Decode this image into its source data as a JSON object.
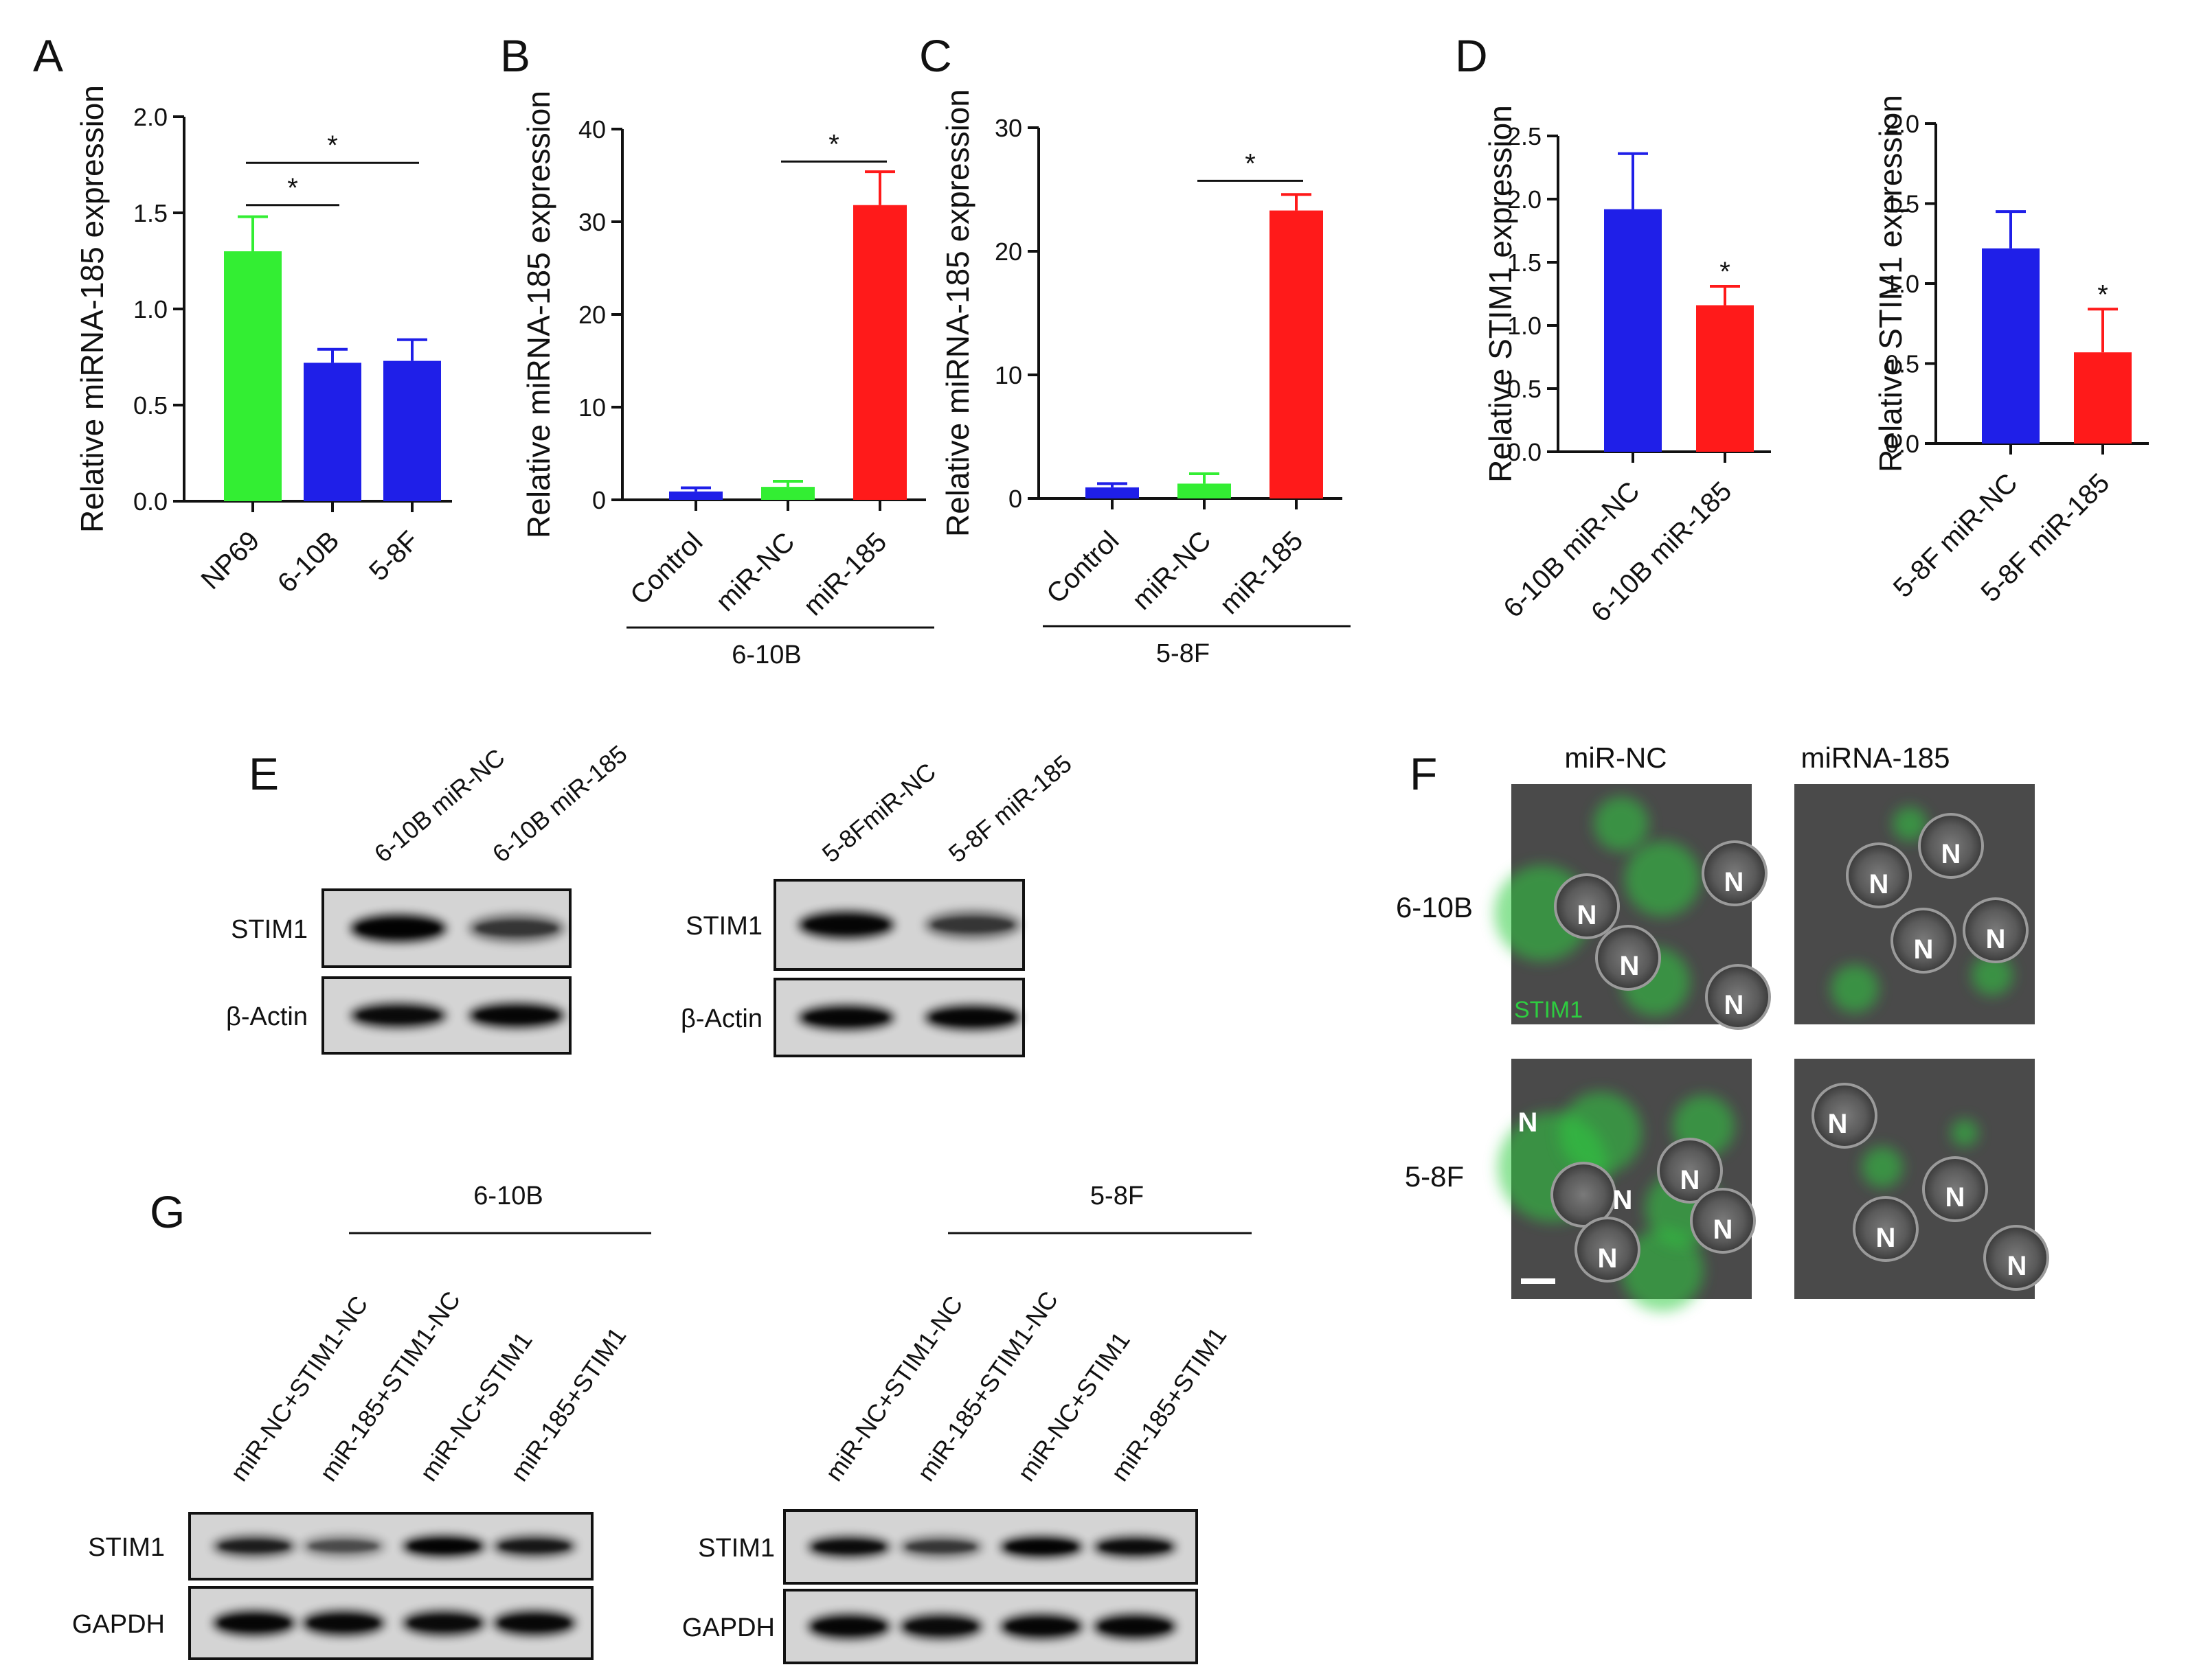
{
  "panels": {
    "A": {
      "letter": "A"
    },
    "B": {
      "letter": "B"
    },
    "C": {
      "letter": "C"
    },
    "D": {
      "letter": "D"
    },
    "E": {
      "letter": "E"
    },
    "F": {
      "letter": "F"
    },
    "G": {
      "letter": "G"
    }
  },
  "colors": {
    "green": "#33ee33",
    "blue": "#1f1fe8",
    "red": "#ff1a1a",
    "stim1_stain": "#2ecc40"
  },
  "chart_data": [
    {
      "id": "A",
      "type": "bar",
      "ylabel": "Relative miRNA-185 expression",
      "ylim": [
        0,
        2.0
      ],
      "yticks": [
        0.0,
        0.5,
        1.0,
        1.5,
        2.0
      ],
      "ytick_labels": [
        "0.0",
        "0.5",
        "1.0",
        "1.5",
        "2.0"
      ],
      "categories": [
        "NP69",
        "6-10B",
        "5-8F"
      ],
      "values": [
        1.3,
        0.72,
        0.73
      ],
      "errors": [
        0.18,
        0.07,
        0.11
      ],
      "colors": [
        "#33ee33",
        "#1f1fe8",
        "#1f1fe8"
      ],
      "significance": [
        {
          "from": 0,
          "to": 1,
          "y": 1.54,
          "label": "*"
        },
        {
          "from": 0,
          "to": 2,
          "y": 1.76,
          "label": "*"
        }
      ],
      "group_label": ""
    },
    {
      "id": "B",
      "type": "bar",
      "ylabel": "Relative miRNA-185 expression",
      "ylim": [
        0,
        40
      ],
      "yticks": [
        0,
        10,
        20,
        30,
        40
      ],
      "ytick_labels": [
        "0",
        "10",
        "20",
        "30",
        "40"
      ],
      "categories": [
        "Control",
        "miR-NC",
        "miR-185"
      ],
      "values": [
        0.9,
        1.4,
        31.8
      ],
      "errors": [
        0.4,
        0.6,
        3.6
      ],
      "colors": [
        "#1f1fe8",
        "#33ee33",
        "#ff1a1a"
      ],
      "significance": [
        {
          "from": 1,
          "to": 2,
          "y": 36.5,
          "label": "*"
        }
      ],
      "group_label": "6-10B"
    },
    {
      "id": "C",
      "type": "bar",
      "ylabel": "Relative miRNA-185 expression",
      "ylim": [
        0,
        30
      ],
      "yticks": [
        0,
        10,
        20,
        30
      ],
      "ytick_labels": [
        "0",
        "10",
        "20",
        "30"
      ],
      "categories": [
        "Control",
        "miR-NC",
        "miR-185"
      ],
      "values": [
        0.9,
        1.2,
        23.3
      ],
      "errors": [
        0.3,
        0.8,
        1.3
      ],
      "colors": [
        "#1f1fe8",
        "#33ee33",
        "#ff1a1a"
      ],
      "significance": [
        {
          "from": 1,
          "to": 2,
          "y": 25.7,
          "label": "*"
        }
      ],
      "group_label": "5-8F"
    },
    {
      "id": "D1",
      "type": "bar",
      "ylabel": "Relative STIM1 expression",
      "ylim": [
        0,
        2.5
      ],
      "yticks": [
        0.0,
        0.5,
        1.0,
        1.5,
        2.0,
        2.5
      ],
      "ytick_labels": [
        "0.0",
        "0.5",
        "1.0",
        "1.5",
        "2.0",
        "2.5"
      ],
      "categories": [
        "6-10B miR-NC",
        "6-10B miR-185"
      ],
      "values": [
        1.92,
        1.16
      ],
      "errors": [
        0.44,
        0.15
      ],
      "colors": [
        "#1f1fe8",
        "#ff1a1a"
      ],
      "marks": [
        {
          "index": 1,
          "label": "*"
        }
      ],
      "group_label": ""
    },
    {
      "id": "D2",
      "type": "bar",
      "ylabel": "Relative STIM1 expression",
      "ylim": [
        0,
        2.0
      ],
      "yticks": [
        0.0,
        0.5,
        1.0,
        1.5,
        2.0
      ],
      "ytick_labels": [
        "0.0",
        "0.5",
        "1.0",
        "1.5",
        "2.0"
      ],
      "categories": [
        "5-8F miR-NC",
        "5-8F miR-185"
      ],
      "values": [
        1.22,
        0.57
      ],
      "errors": [
        0.23,
        0.27
      ],
      "colors": [
        "#1f1fe8",
        "#ff1a1a"
      ],
      "marks": [
        {
          "index": 1,
          "label": "*"
        }
      ],
      "group_label": ""
    }
  ],
  "blots_E": [
    {
      "lanes": [
        "6-10B miR-NC",
        "6-10B miR-185"
      ],
      "rows": [
        "STIM1",
        "β-Actin"
      ]
    },
    {
      "lanes": [
        "5-8FmiR-NC",
        "5-8F miR-185"
      ],
      "rows": [
        "STIM1",
        "β-Actin"
      ]
    }
  ],
  "microscopy_F": {
    "columns": [
      "miR-NC",
      "miRNA-185"
    ],
    "rows": [
      "6-10B",
      "5-8F"
    ],
    "nucleus_label": "N",
    "stain_label": "STIM1"
  },
  "blots_G": [
    {
      "group": "6-10B",
      "lanes": [
        "miR-NC+STIM1-NC",
        "miR-185+STIM1-NC",
        "miR-NC+STIM1",
        "miR-185+STIM1"
      ],
      "rows": [
        "STIM1",
        "GAPDH"
      ]
    },
    {
      "group": "5-8F",
      "lanes": [
        "miR-NC+STIM1-NC",
        "miR-185+STIM1-NC",
        "miR-NC+STIM1",
        "miR-185+STIM1"
      ],
      "rows": [
        "STIM1",
        "GAPDH"
      ]
    }
  ]
}
